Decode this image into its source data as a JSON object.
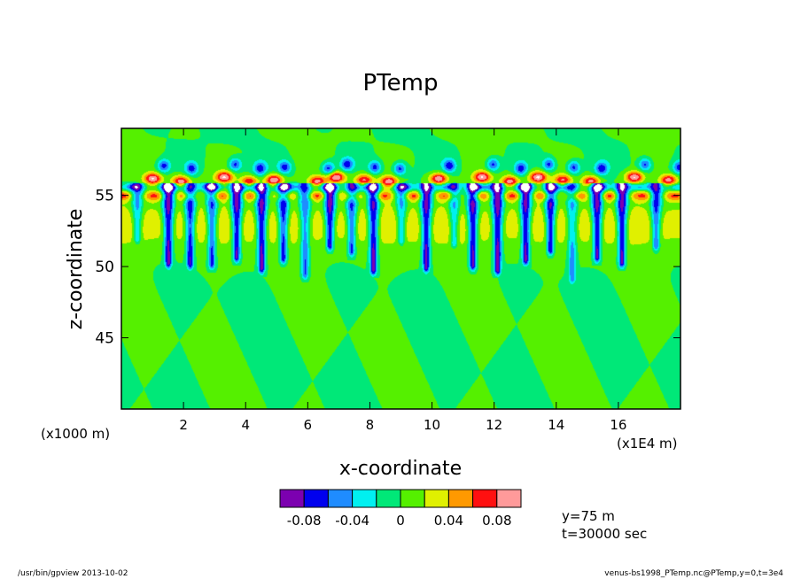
{
  "chart_data": {
    "type": "heatmap",
    "title": "PTemp",
    "xlabel": "x-coordinate",
    "ylabel": "z-coordinate",
    "x_unit_left": "(x1000 m)",
    "x_unit_right": "(x1E4 m)",
    "xlim": [
      0.0,
      18.0
    ],
    "ylim": [
      40.0,
      59.7
    ],
    "x_ticks": [
      2,
      4,
      6,
      8,
      10,
      12,
      14,
      16
    ],
    "x_tick_labels": [
      "2",
      "4",
      "6",
      "8",
      "10",
      "12",
      "14",
      "16"
    ],
    "y_ticks": [
      45,
      50,
      55
    ],
    "y_tick_labels": [
      "45",
      "50",
      "55"
    ],
    "colorbar": {
      "levels": [
        -0.1,
        -0.08,
        -0.06,
        -0.04,
        -0.02,
        0.0,
        0.02,
        0.04,
        0.06,
        0.08,
        0.1
      ],
      "colors": [
        "#7c00b0",
        "#0000ee",
        "#1f8cff",
        "#00f0f0",
        "#00e878",
        "#55f000",
        "#e0f000",
        "#ff9900",
        "#ff1010",
        "#ff9a9a"
      ],
      "tick_labels": [
        "-0.08",
        "-0.04",
        "0",
        "0.04",
        "0.08"
      ],
      "tick_values": [
        -0.08,
        -0.04,
        0.0,
        0.04,
        0.08
      ]
    },
    "plumes": {
      "z_top": 55.5,
      "x": [
        0.5,
        1.5,
        2.2,
        2.9,
        3.7,
        4.5,
        5.2,
        5.9,
        6.7,
        7.4,
        8.1,
        9.0,
        9.8,
        10.7,
        11.3,
        12.1,
        13.0,
        13.8,
        14.5,
        15.3,
        16.1,
        17.2
      ],
      "z_bottom": [
        52.0,
        50.3,
        50.2,
        50.2,
        50.7,
        49.9,
        50.6,
        49.5,
        51.5,
        51.1,
        49.8,
        51.9,
        50.0,
        51.7,
        50.1,
        49.8,
        50.5,
        51.2,
        49.2,
        50.7,
        50.3,
        51.5
      ],
      "amplitude": [
        -0.06,
        -0.1,
        -0.09,
        -0.08,
        -0.1,
        -0.1,
        -0.09,
        -0.07,
        -0.1,
        -0.08,
        -0.1,
        -0.06,
        -0.1,
        -0.06,
        -0.1,
        -0.1,
        -0.1,
        -0.1,
        -0.06,
        -0.1,
        -0.1,
        -0.08
      ]
    },
    "upper_cells": {
      "x": [
        1.0,
        1.9,
        3.3,
        4.1,
        4.9,
        6.3,
        6.9,
        7.8,
        8.6,
        10.2,
        11.6,
        12.5,
        13.4,
        14.2,
        15.1,
        16.5,
        17.6
      ],
      "z": [
        56.2,
        56.0,
        56.3,
        56.0,
        56.1,
        56.0,
        56.3,
        56.1,
        56.0,
        56.2,
        56.3,
        56.0,
        56.3,
        56.1,
        56.0,
        56.3,
        56.1
      ],
      "amplitude": [
        0.1,
        0.09,
        0.1,
        0.08,
        0.1,
        0.09,
        0.1,
        0.08,
        0.09,
        0.1,
        0.1,
        0.09,
        0.1,
        0.08,
        0.09,
        0.1,
        0.09
      ]
    },
    "note_y": "y=75  m",
    "note_t": "t=30000 sec"
  },
  "footer": {
    "left": "/usr/bin/gpview   2013-10-02",
    "right": "venus-bs1998_PTemp.nc@PTemp,y=0,t=3e4"
  }
}
